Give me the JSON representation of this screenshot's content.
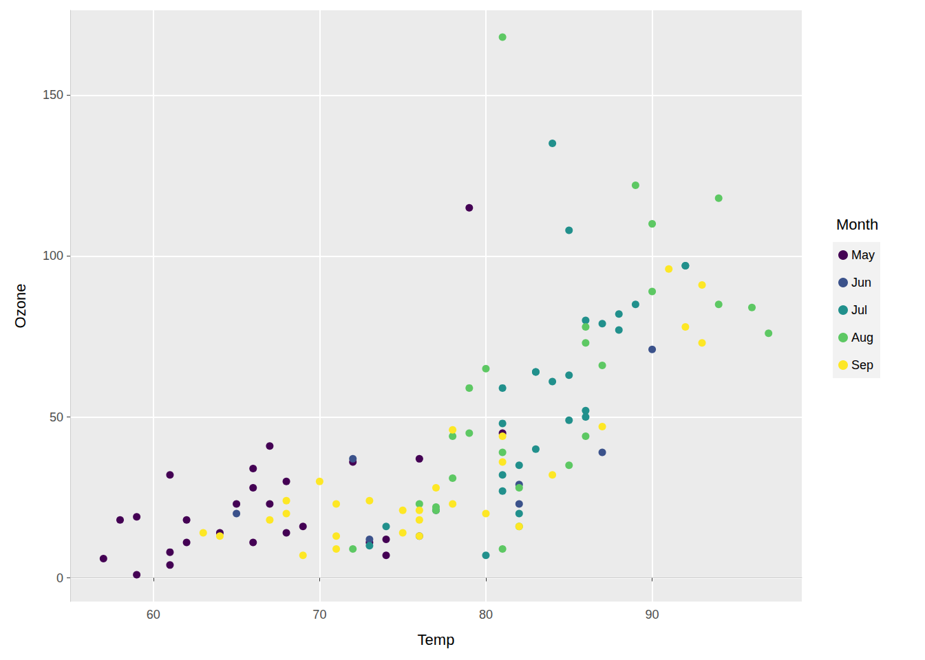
{
  "chart_data": {
    "type": "scatter",
    "x_label": "Temp",
    "y_label": "Ozone",
    "legend_title": "Month",
    "legend": "right",
    "grid": true,
    "marker": "circle",
    "xlim": [
      55,
      99
    ],
    "xticks": [
      60,
      70,
      80,
      90
    ],
    "ylim": [
      -7.35,
      176.35
    ],
    "yticks": [
      0,
      50,
      100,
      150
    ],
    "series": [
      {
        "name": "May",
        "color": "#440154",
        "x": [
          67,
          72,
          74,
          62,
          66,
          65,
          59,
          61,
          74,
          69,
          66,
          68,
          58,
          64,
          66,
          57,
          68,
          62,
          59,
          73,
          61,
          61,
          67,
          81,
          79,
          76
        ],
        "values": [
          41,
          36,
          12,
          18,
          28,
          23,
          19,
          8,
          7,
          16,
          11,
          14,
          18,
          14,
          34,
          6,
          30,
          11,
          1,
          11,
          4,
          32,
          23,
          45,
          115,
          37
        ]
      },
      {
        "name": "Jun",
        "color": "#3B528B",
        "x": [
          82,
          90,
          87,
          82,
          77,
          72,
          65,
          73,
          76
        ],
        "values": [
          29,
          71,
          39,
          23,
          21,
          37,
          20,
          12,
          13
        ]
      },
      {
        "name": "Jul",
        "color": "#21908C",
        "x": [
          84,
          85,
          81,
          83,
          83,
          88,
          92,
          92,
          89,
          73,
          81,
          80,
          81,
          82,
          84,
          87,
          85,
          74,
          86,
          85,
          82,
          86,
          88,
          86,
          83,
          81
        ],
        "values": [
          135,
          49,
          32,
          64,
          40,
          77,
          97,
          97,
          85,
          10,
          27,
          7,
          48,
          35,
          61,
          79,
          63,
          16,
          80,
          108,
          20,
          52,
          82,
          50,
          64,
          59
        ]
      },
      {
        "name": "Aug",
        "color": "#5DC863",
        "x": [
          81,
          81,
          82,
          86,
          85,
          87,
          89,
          90,
          90,
          86,
          82,
          80,
          77,
          79,
          76,
          78,
          78,
          77,
          72,
          79,
          81,
          86,
          97,
          94,
          96,
          94
        ],
        "values": [
          39,
          9,
          16,
          78,
          35,
          66,
          122,
          89,
          110,
          44,
          28,
          65,
          22,
          59,
          23,
          31,
          44,
          21,
          9,
          45,
          168,
          73,
          76,
          118,
          84,
          85
        ]
      },
      {
        "name": "Sep",
        "color": "#FDE725",
        "x": [
          91,
          92,
          93,
          93,
          87,
          84,
          80,
          78,
          75,
          73,
          81,
          76,
          77,
          71,
          71,
          78,
          67,
          76,
          68,
          82,
          64,
          71,
          81,
          69,
          63,
          70,
          75,
          76,
          68
        ],
        "values": [
          96,
          78,
          73,
          91,
          47,
          32,
          20,
          23,
          21,
          24,
          44,
          21,
          28,
          9,
          13,
          46,
          18,
          13,
          24,
          16,
          13,
          23,
          36,
          7,
          14,
          30,
          14,
          18,
          20
        ]
      }
    ]
  }
}
